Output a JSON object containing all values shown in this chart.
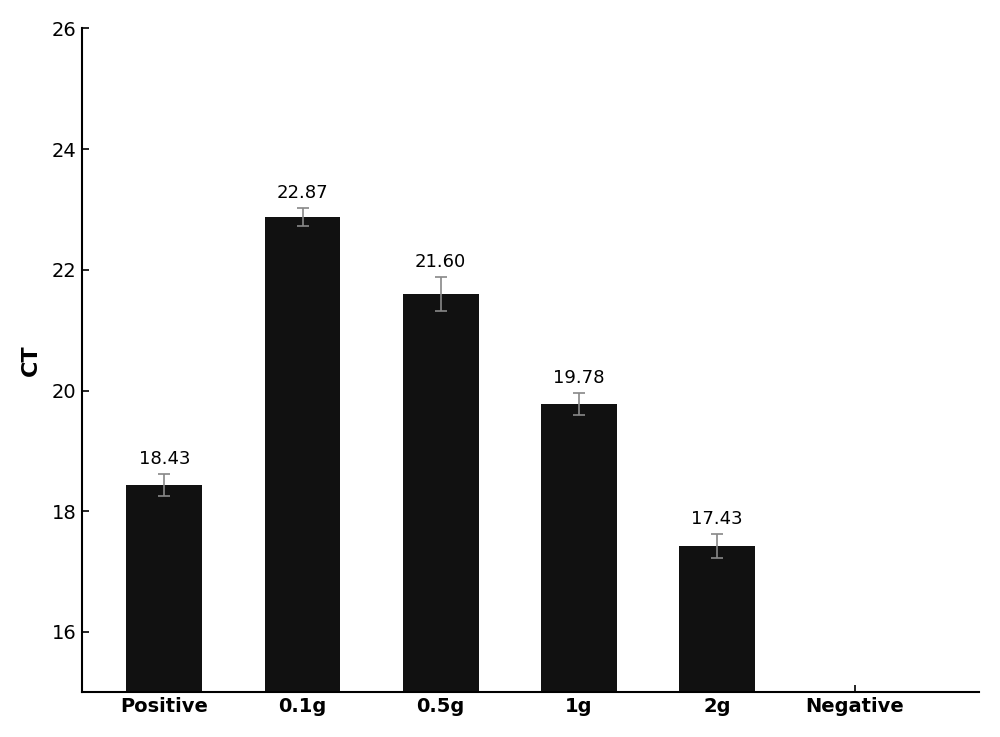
{
  "categories": [
    "Positive",
    "0.1g",
    "0.5g",
    "1g",
    "2g",
    "Negative"
  ],
  "values": [
    18.43,
    22.87,
    21.6,
    19.78,
    17.43,
    null
  ],
  "errors": [
    0.18,
    0.15,
    0.28,
    0.18,
    0.2,
    null
  ],
  "bar_color": "#111111",
  "ylabel": "CT",
  "ylim_min": 15,
  "ylim_max": 26,
  "yticks": [
    16,
    18,
    20,
    22,
    24,
    26
  ],
  "label_fontsize": 16,
  "tick_fontsize": 14,
  "value_fontsize": 13,
  "bar_width": 0.55,
  "figsize": [
    10.0,
    7.37
  ],
  "dpi": 100
}
